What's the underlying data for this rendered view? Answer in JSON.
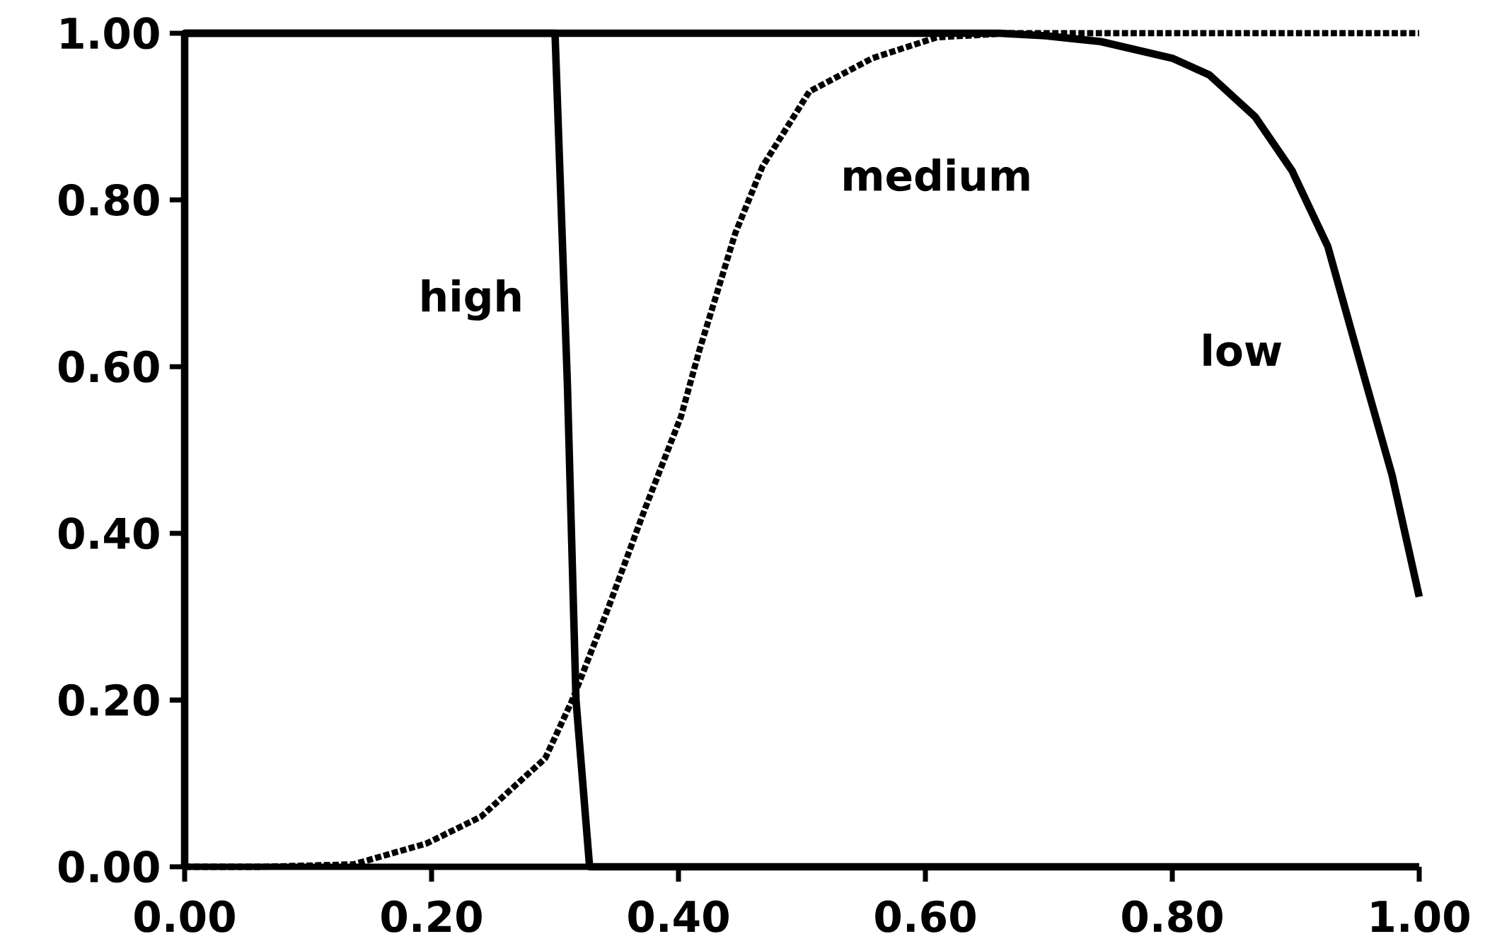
{
  "chart_data": {
    "type": "line",
    "xlim": [
      0,
      1
    ],
    "ylim": [
      0,
      1
    ],
    "xticks": [
      {
        "value": 0,
        "label": "0.00"
      },
      {
        "value": 0.2,
        "label": "0.20"
      },
      {
        "value": 0.4,
        "label": "0.40"
      },
      {
        "value": 0.6,
        "label": "0.60"
      },
      {
        "value": 0.8,
        "label": "0.80"
      },
      {
        "value": 1,
        "label": "1.00"
      }
    ],
    "yticks": [
      {
        "value": 0,
        "label": "0.00"
      },
      {
        "value": 0.2,
        "label": "0.20"
      },
      {
        "value": 0.4,
        "label": "0.40"
      },
      {
        "value": 0.6,
        "label": "0.60"
      },
      {
        "value": 0.8,
        "label": "0.80"
      },
      {
        "value": 1,
        "label": "1.00"
      }
    ],
    "grid": false,
    "legend": false,
    "marker": "none",
    "series": [
      {
        "name": "high",
        "color": "#000000",
        "line_style": "solid",
        "x": [
          0,
          0,
          0.3,
          0.31,
          0.317,
          0.328,
          1
        ],
        "values": [
          0,
          1,
          1,
          0.58,
          0.2,
          0,
          0
        ]
      },
      {
        "name": "medium",
        "color": "#000000",
        "line_style": "dotted",
        "x": [
          0,
          0.063,
          0.137,
          0.196,
          0.24,
          0.292,
          0.314,
          0.343,
          0.373,
          0.402,
          0.417,
          0.446,
          0.468,
          0.506,
          0.557,
          0.609,
          0.668,
          1
        ],
        "values": [
          0,
          0,
          0.003,
          0.028,
          0.06,
          0.13,
          0.2,
          0.31,
          0.43,
          0.54,
          0.62,
          0.76,
          0.84,
          0.93,
          0.97,
          0.995,
          1,
          1
        ]
      },
      {
        "name": "low",
        "color": "#000000",
        "line_style": "solid",
        "x": [
          0,
          0.66,
          0.697,
          0.742,
          0.8,
          0.83,
          0.867,
          0.897,
          0.926,
          0.956,
          0.978,
          1
        ],
        "values": [
          1,
          1,
          0.997,
          0.99,
          0.97,
          0.95,
          0.9,
          0.835,
          0.744,
          0.585,
          0.47,
          0.324
        ]
      }
    ]
  }
}
